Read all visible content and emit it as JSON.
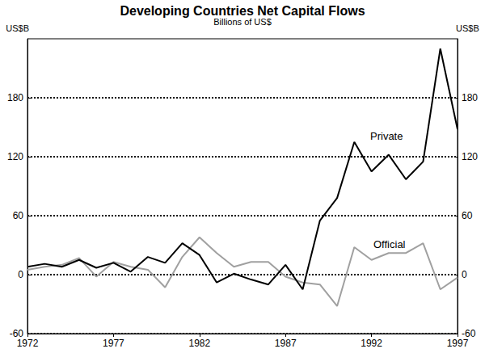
{
  "chart_data": {
    "type": "line",
    "title": "Developing Countries Net Capital Flows",
    "subtitle": "Billions of US$",
    "ylabel": "US$B",
    "y2label": "US$B",
    "x": [
      1972,
      1973,
      1974,
      1975,
      1976,
      1977,
      1978,
      1979,
      1980,
      1981,
      1982,
      1983,
      1984,
      1985,
      1986,
      1987,
      1988,
      1989,
      1990,
      1991,
      1992,
      1993,
      1994,
      1995,
      1996,
      1997
    ],
    "series": [
      {
        "name": "Private",
        "color": "#000000",
        "values": [
          8,
          11,
          8,
          15,
          7,
          12,
          3,
          18,
          12,
          32,
          20,
          -8,
          1,
          -5,
          -10,
          10,
          -15,
          55,
          78,
          135,
          105,
          122,
          97,
          115,
          230,
          148
        ]
      },
      {
        "name": "Official",
        "color": "#a0a0a0",
        "values": [
          5,
          8,
          10,
          17,
          -2,
          13,
          8,
          5,
          -13,
          18,
          38,
          22,
          8,
          13,
          13,
          -2,
          -8,
          -10,
          -32,
          28,
          15,
          22,
          22,
          32,
          -15,
          -3
        ]
      }
    ],
    "xlim": [
      1972,
      1997
    ],
    "xticks": [
      1972,
      1977,
      1982,
      1987,
      1992,
      1997
    ],
    "ylim": [
      -60,
      240
    ],
    "yticks": [
      -60,
      0,
      60,
      120,
      180
    ],
    "y2lim": [
      -60,
      240
    ],
    "y2ticks": [
      -60,
      0,
      60,
      120,
      180
    ],
    "grid": true
  }
}
